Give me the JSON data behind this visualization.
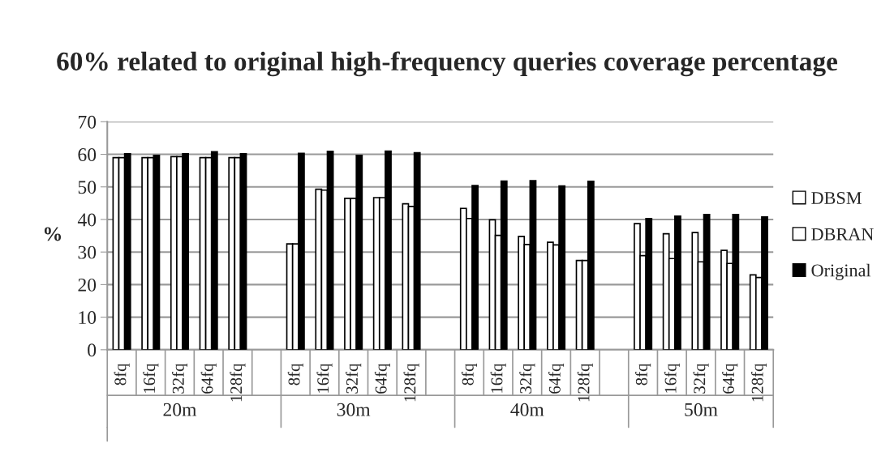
{
  "chart_data": {
    "type": "bar",
    "title": "60% related to original high-frequency queries coverage percentage",
    "ylabel": "%",
    "categories": [
      "8fq",
      "16fq",
      "32fq",
      "64fq",
      "128fq",
      null,
      "8fq",
      "16fq",
      "32fq",
      "64fq",
      "128fq",
      null,
      "8fq",
      "16fq",
      "32fq",
      "64fq",
      "128fq",
      null,
      "8fq",
      "16fq",
      "32fq",
      "64fq",
      "128fq"
    ],
    "annotations": [
      "20m",
      "30m",
      "40m",
      "50m"
    ],
    "series": [
      {
        "name": "DBSM",
        "color": "#ffffff",
        "values": [
          59,
          59,
          59.3,
          59,
          59,
          null,
          32.5,
          49.3,
          46.5,
          46.7,
          44.8,
          null,
          43.4,
          39.9,
          34.8,
          33,
          27.4,
          null,
          38.7,
          35.6,
          36,
          30.5,
          23
        ]
      },
      {
        "name": "DBRAN",
        "color": "#ffffff",
        "values": [
          59,
          59,
          59.3,
          59,
          59,
          null,
          32.5,
          49,
          46.5,
          46.7,
          44,
          null,
          40.3,
          35.1,
          32.3,
          32.2,
          27.4,
          null,
          28.9,
          28,
          27,
          26.5,
          22.2
        ]
      },
      {
        "name": "Original",
        "color": "#000000",
        "values": [
          60.2,
          59.7,
          60.2,
          60.8,
          60.2,
          null,
          60.3,
          60.9,
          59.7,
          61,
          60.5,
          null,
          50.4,
          51.8,
          51.9,
          50.3,
          51.7,
          null,
          40.3,
          41,
          41.5,
          41.5,
          40.8
        ]
      }
    ],
    "ylim": [
      0,
      70
    ],
    "yticks": [
      0,
      10,
      20,
      30,
      40,
      50,
      60,
      70
    ],
    "grid": "y",
    "legend": "right"
  }
}
